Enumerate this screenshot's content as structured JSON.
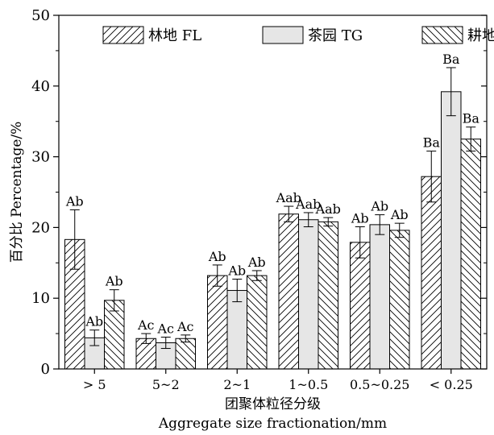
{
  "chart_data": {
    "type": "bar",
    "ylabel": "百分比 Percentage/%",
    "xlabel_cn": "团聚体粒径分级",
    "xlabel_en": "Aggregate size fractionation/mm",
    "ylim": [
      0,
      50
    ],
    "yticks": [
      0,
      10,
      20,
      30,
      40,
      50
    ],
    "grid": false,
    "legend_position": "top",
    "categories": [
      "> 5",
      "5~2",
      "2~1",
      "1~0.5",
      "0.5~0.25",
      "< 0.25"
    ],
    "series": [
      {
        "name": "林地 FL",
        "pattern": "forward-hatch",
        "fill": "#ffffff",
        "values": [
          18.3,
          4.3,
          13.2,
          21.9,
          17.9,
          27.2
        ],
        "errors": [
          4.2,
          0.7,
          1.5,
          1.1,
          2.2,
          3.6
        ],
        "labels": [
          "Ab",
          "Ac",
          "Ab",
          "Aab",
          "Ab",
          "Ba"
        ]
      },
      {
        "name": "茶园 TG",
        "pattern": "solid",
        "fill": "#e6e6e6",
        "values": [
          4.4,
          3.7,
          11.1,
          21.1,
          20.4,
          39.2
        ],
        "errors": [
          1.1,
          0.8,
          1.6,
          1.0,
          1.4,
          3.4
        ],
        "labels": [
          "Ab",
          "Ac",
          "Ab",
          "Aab",
          "Ab",
          "Ba"
        ]
      },
      {
        "name": "耕地 CL",
        "pattern": "backward-hatch",
        "fill": "#ffffff",
        "values": [
          9.7,
          4.3,
          13.2,
          20.8,
          19.6,
          32.5
        ],
        "errors": [
          1.5,
          0.5,
          0.7,
          0.6,
          1.0,
          1.7
        ],
        "labels": [
          "Ab",
          "Ac",
          "Ab",
          "Aab",
          "Ab",
          "Ba"
        ]
      }
    ]
  }
}
